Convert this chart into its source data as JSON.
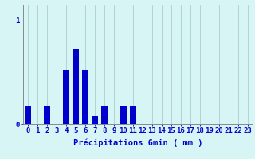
{
  "values": [
    0.18,
    0.0,
    0.18,
    0.0,
    0.52,
    0.72,
    0.52,
    0.08,
    0.18,
    0.0,
    0.18,
    0.18,
    0.0,
    0.0,
    0.0,
    0.0,
    0.0,
    0.0,
    0.0,
    0.0,
    0.0,
    0.0,
    0.0,
    0.0
  ],
  "bar_color": "#0000cc",
  "background_color": "#d8f5f5",
  "grid_color": "#aacfcf",
  "axis_color": "#888888",
  "text_color": "#0000cc",
  "xlabel": "Précipitations 6min ( mm )",
  "ytick_labels": [
    "0",
    "1"
  ],
  "ytick_vals": [
    0,
    1
  ],
  "ylim": [
    0,
    1.15
  ],
  "xlim": [
    -0.5,
    23.5
  ],
  "xlabel_fontsize": 7.5,
  "tick_fontsize": 6.5,
  "bar_width": 0.7
}
